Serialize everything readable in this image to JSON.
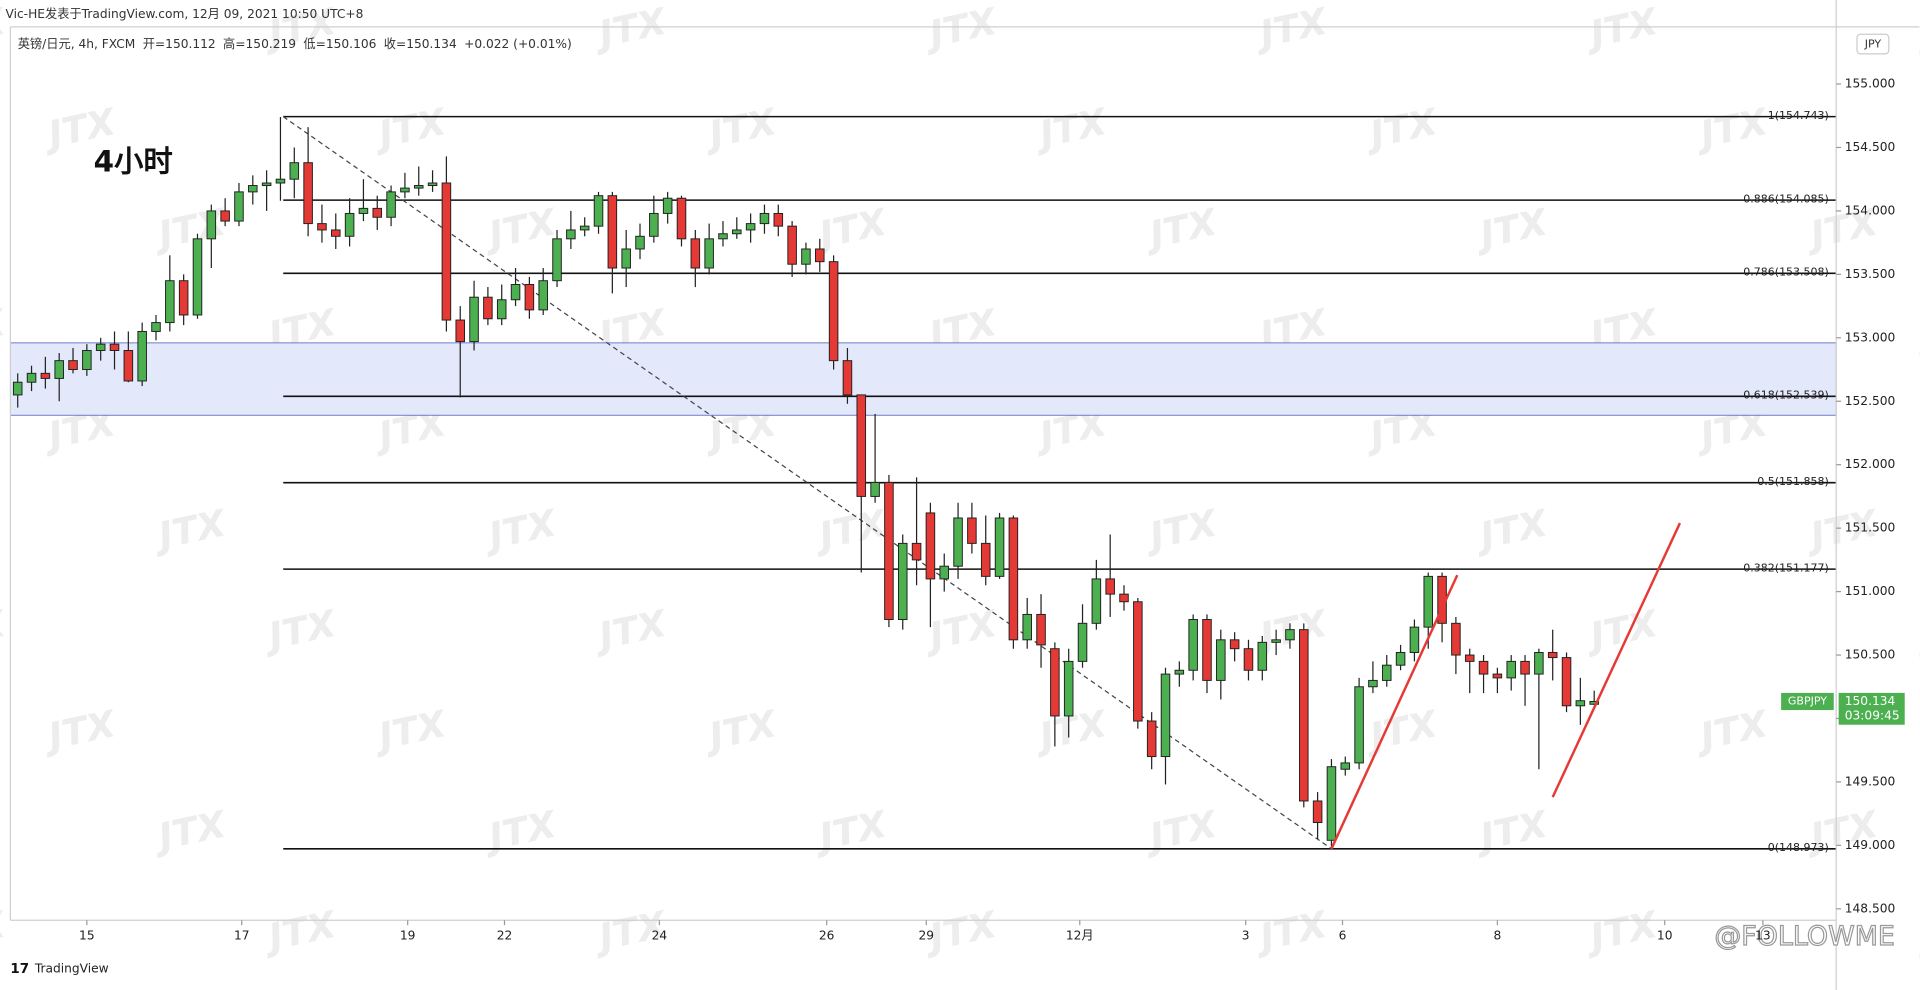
{
  "header": {
    "byline": "Vic-HE发表于TradingView.com, 12月 09, 2021 10:50 UTC+8",
    "symbol": "英镑/日元, 4h, FXCM",
    "open_label": "开=",
    "high_label": "高=",
    "low_label": "低=",
    "close_label": "收=",
    "change": "+0.022 (+0.01%)",
    "currency": "JPY",
    "timeframe_note": "4小时",
    "ticker": "GBPJPY",
    "countdown": "03:09:45",
    "brand": "TradingView",
    "follow": "@FOLLOWME"
  },
  "watermark": "JTX",
  "chart_data": {
    "type": "candlestick",
    "up_color": "#4caf50",
    "down_color": "#e53935",
    "xlim": [
      -0.53,
      131.5
    ],
    "ylim": [
      148.41,
      155.45
    ],
    "xticks": [
      {
        "value": 5,
        "label": "15"
      },
      {
        "value": 16.2,
        "label": "17"
      },
      {
        "value": 28.2,
        "label": "19"
      },
      {
        "value": 35.2,
        "label": "22"
      },
      {
        "value": 46.4,
        "label": "24"
      },
      {
        "value": 58.5,
        "label": "26"
      },
      {
        "value": 65.7,
        "label": "29"
      },
      {
        "value": 76.8,
        "label": "12月"
      },
      {
        "value": 88.8,
        "label": "3"
      },
      {
        "value": 95.8,
        "label": "6"
      },
      {
        "value": 107,
        "label": "8"
      },
      {
        "value": 119.1,
        "label": "10"
      },
      {
        "value": 126.2,
        "label": "13"
      }
    ],
    "yticks": [
      {
        "value": 148.5,
        "label": "148.500"
      },
      {
        "value": 149,
        "label": "149.000"
      },
      {
        "value": 149.5,
        "label": "149.500"
      },
      {
        "value": 150,
        "label": "150.000"
      },
      {
        "value": 150.5,
        "label": "150.500"
      },
      {
        "value": 151,
        "label": "151.000"
      },
      {
        "value": 151.5,
        "label": "151.500"
      },
      {
        "value": 152,
        "label": "152.000"
      },
      {
        "value": 152.5,
        "label": "152.500"
      },
      {
        "value": 153,
        "label": "153.000"
      },
      {
        "value": 153.5,
        "label": "153.500"
      },
      {
        "value": 154,
        "label": "154.000"
      },
      {
        "value": 154.5,
        "label": "154.500"
      },
      {
        "value": 155,
        "label": "155.000"
      }
    ],
    "open": [
      152.55,
      152.65,
      152.72,
      152.68,
      152.82,
      152.75,
      152.9,
      152.95,
      152.9,
      152.66,
      153.05,
      153.12,
      153.45,
      153.18,
      153.78,
      154.0,
      153.92,
      154.15,
      154.2,
      154.22,
      154.25,
      154.38,
      153.9,
      153.85,
      153.8,
      153.98,
      154.02,
      153.95,
      154.15,
      154.18,
      154.2,
      154.22,
      153.14,
      152.97,
      153.32,
      153.15,
      153.3,
      153.42,
      153.22,
      153.45,
      153.78,
      153.85,
      153.88,
      154.12,
      153.55,
      153.7,
      153.8,
      153.98,
      154.1,
      153.78,
      153.55,
      153.78,
      153.82,
      153.85,
      153.9,
      153.98,
      153.88,
      153.58,
      153.7,
      153.6,
      152.82,
      152.55,
      151.75,
      151.86,
      150.78,
      151.38,
      151.62,
      151.1,
      151.2,
      151.58,
      151.38,
      151.12,
      151.58,
      150.62,
      150.82,
      150.55,
      150.02,
      150.45,
      150.75,
      151.1,
      150.98,
      150.92,
      149.98,
      149.7,
      150.35,
      150.38,
      150.78,
      150.3,
      150.62,
      150.55,
      150.38,
      150.6,
      150.62,
      150.7,
      149.35,
      149.04,
      149.6,
      149.65,
      150.25,
      150.3,
      150.42,
      150.52,
      150.72,
      151.12,
      150.75,
      150.5,
      150.45,
      150.35,
      150.32,
      150.45,
      150.35,
      150.52,
      150.48,
      150.1,
      150.112
    ],
    "high": [
      152.72,
      152.78,
      152.85,
      152.88,
      152.92,
      152.95,
      153.0,
      153.05,
      153.05,
      153.12,
      153.18,
      153.65,
      153.5,
      153.82,
      154.05,
      154.1,
      154.22,
      154.28,
      154.32,
      154.74,
      154.5,
      154.66,
      154.05,
      153.98,
      154.1,
      154.25,
      154.12,
      154.2,
      154.3,
      154.35,
      154.32,
      154.43,
      153.25,
      153.45,
      153.4,
      153.42,
      153.55,
      153.48,
      153.55,
      153.85,
      154.0,
      153.95,
      154.15,
      154.15,
      153.85,
      153.9,
      154.12,
      154.15,
      154.12,
      153.85,
      153.9,
      153.92,
      153.95,
      153.98,
      154.05,
      154.05,
      153.92,
      153.75,
      153.78,
      153.65,
      152.92,
      152.55,
      152.4,
      151.92,
      151.45,
      151.9,
      151.7,
      151.3,
      151.7,
      151.7,
      151.6,
      151.62,
      151.6,
      150.95,
      150.98,
      150.6,
      150.55,
      150.9,
      151.25,
      151.45,
      151.05,
      150.95,
      150.05,
      150.4,
      150.45,
      150.82,
      150.82,
      150.7,
      150.68,
      150.62,
      150.65,
      150.7,
      150.75,
      150.75,
      149.42,
      149.68,
      149.7,
      150.32,
      150.45,
      150.5,
      150.58,
      150.78,
      151.15,
      151.15,
      150.8,
      150.55,
      150.5,
      150.4,
      150.5,
      150.5,
      150.55,
      150.7,
      150.52,
      150.32,
      150.219
    ],
    "low": [
      152.45,
      152.58,
      152.6,
      152.5,
      152.72,
      152.7,
      152.82,
      152.75,
      152.65,
      152.62,
      152.98,
      153.05,
      153.1,
      153.15,
      153.55,
      153.88,
      153.88,
      154.05,
      154.0,
      154.08,
      154.1,
      153.8,
      153.75,
      153.7,
      153.72,
      153.92,
      153.85,
      153.88,
      154.1,
      154.12,
      154.15,
      153.05,
      152.53,
      152.9,
      153.1,
      153.1,
      153.25,
      153.15,
      153.18,
      153.4,
      153.7,
      153.8,
      153.82,
      153.35,
      153.4,
      153.62,
      153.75,
      153.9,
      153.72,
      153.4,
      153.5,
      153.72,
      153.78,
      153.75,
      153.82,
      153.8,
      153.48,
      153.5,
      153.52,
      152.75,
      152.48,
      151.15,
      151.7,
      150.72,
      150.7,
      151.05,
      150.72,
      151.0,
      151.1,
      151.3,
      151.05,
      151.1,
      150.55,
      150.55,
      150.4,
      149.78,
      149.85,
      150.4,
      150.7,
      150.8,
      150.85,
      149.92,
      149.6,
      149.48,
      150.25,
      150.3,
      150.2,
      150.15,
      150.45,
      150.3,
      150.3,
      150.5,
      150.55,
      149.3,
      149.05,
      148.97,
      149.55,
      149.6,
      150.2,
      150.25,
      150.38,
      150.45,
      150.55,
      150.6,
      150.35,
      150.2,
      150.2,
      150.2,
      150.22,
      150.1,
      149.6,
      150.3,
      150.05,
      149.95,
      150.106
    ],
    "close": [
      152.65,
      152.72,
      152.68,
      152.82,
      152.75,
      152.9,
      152.95,
      152.9,
      152.66,
      153.05,
      153.12,
      153.45,
      153.18,
      153.78,
      154.0,
      153.92,
      154.15,
      154.2,
      154.22,
      154.25,
      154.38,
      153.9,
      153.85,
      153.8,
      153.98,
      154.02,
      153.95,
      154.15,
      154.18,
      154.2,
      154.22,
      153.14,
      152.97,
      153.32,
      153.15,
      153.3,
      153.42,
      153.22,
      153.45,
      153.78,
      153.85,
      153.88,
      154.12,
      153.55,
      153.7,
      153.8,
      153.98,
      154.1,
      153.78,
      153.55,
      153.78,
      153.82,
      153.85,
      153.9,
      153.98,
      153.88,
      153.58,
      153.7,
      153.6,
      152.82,
      152.55,
      151.75,
      151.86,
      150.78,
      151.38,
      151.25,
      151.1,
      151.2,
      151.58,
      151.38,
      151.12,
      151.58,
      150.62,
      150.82,
      150.58,
      150.02,
      150.45,
      150.75,
      151.1,
      150.98,
      150.92,
      149.98,
      149.7,
      150.35,
      150.38,
      150.78,
      150.3,
      150.62,
      150.55,
      150.38,
      150.6,
      150.62,
      150.7,
      149.35,
      149.18,
      149.62,
      149.65,
      150.25,
      150.3,
      150.42,
      150.52,
      150.72,
      151.12,
      150.75,
      150.5,
      150.45,
      150.35,
      150.32,
      150.45,
      150.35,
      150.52,
      150.48,
      150.1,
      150.14,
      150.134
    ],
    "fib_from_x": 19.2,
    "fib_levels": [
      {
        "value": 154.743,
        "label": "1(154.743)"
      },
      {
        "value": 154.085,
        "label": "0.886(154.085)"
      },
      {
        "value": 153.508,
        "label": "0.786(153.508)"
      },
      {
        "value": 152.539,
        "label": "0.618(152.539)"
      },
      {
        "value": 151.858,
        "label": "0.5(151.858)"
      },
      {
        "value": 151.177,
        "label": "0.382(151.177)"
      },
      {
        "value": 148.973,
        "label": "0(148.973)"
      }
    ],
    "zone": {
      "from": 152.39,
      "to": 152.96,
      "color": "#e3e8fb"
    },
    "dashed_line": {
      "x": [
        19.2,
        95.0
      ],
      "y": [
        154.743,
        148.973
      ]
    },
    "trend_lines": [
      {
        "color": "#e53935",
        "x": [
          95.0,
          104.1
        ],
        "y": [
          148.973,
          151.13
        ]
      },
      {
        "color": "#e53935",
        "x": [
          111.0,
          120.2
        ],
        "y": [
          149.38,
          151.54
        ]
      }
    ]
  }
}
